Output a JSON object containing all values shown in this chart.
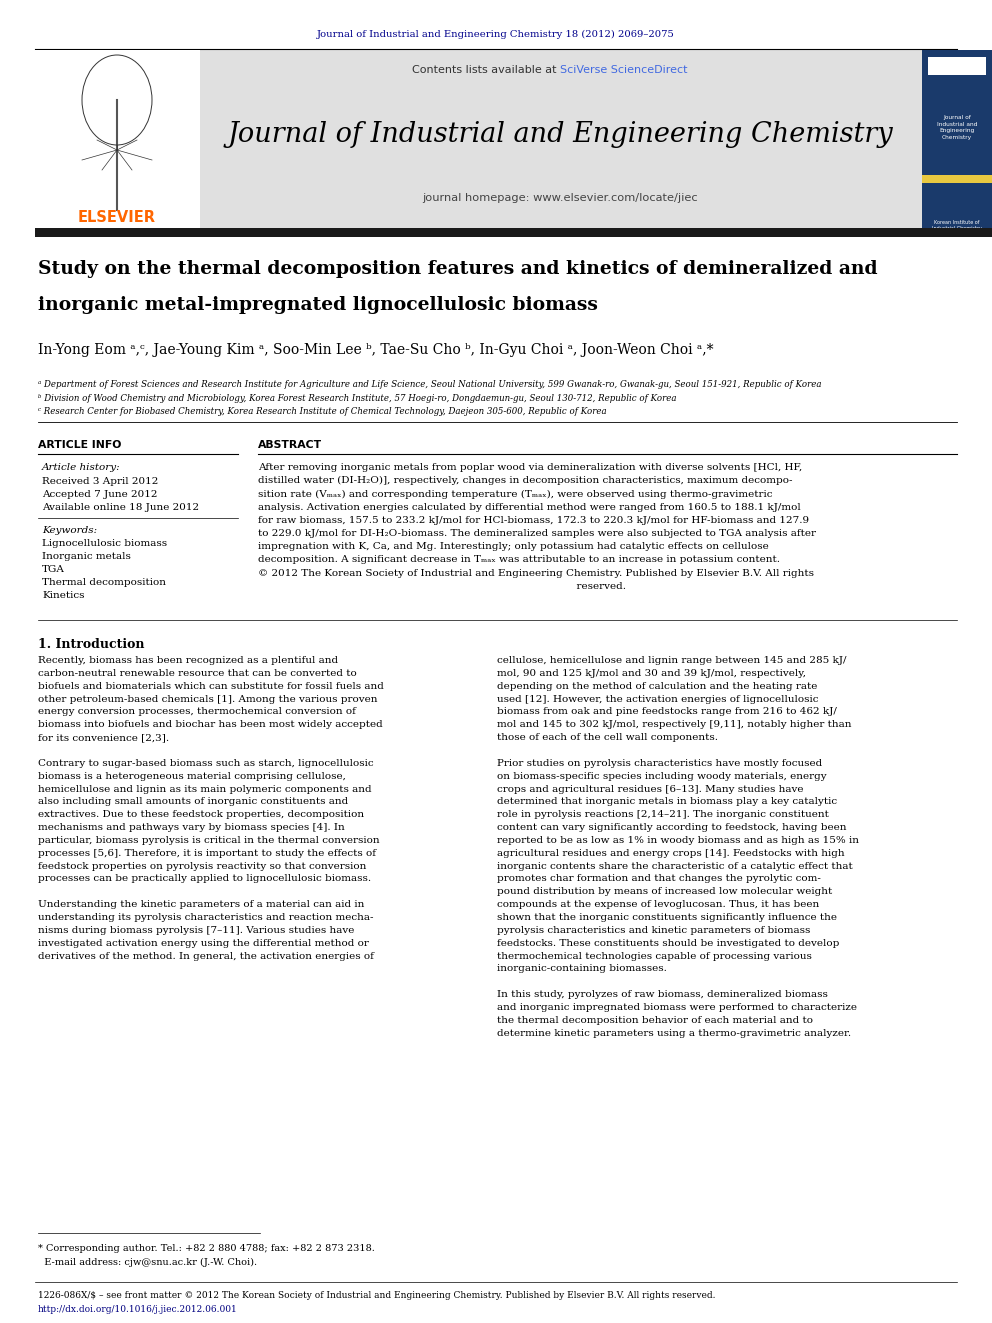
{
  "page_width": 9.92,
  "page_height": 13.23,
  "bg_color": "#ffffff",
  "top_journal_ref": "Journal of Industrial and Engineering Chemistry 18 (2012) 2069–2075",
  "top_journal_ref_color": "#00008B",
  "header_bg": "#e0e0e0",
  "header_sciverse_color": "#4169E1",
  "journal_title": "Journal of Industrial and Engineering Chemistry",
  "journal_homepage": "journal homepage: www.elsevier.com/locate/jiec",
  "elsevier_color": "#FF6600",
  "article_title_line1": "Study on the thermal decomposition features and kinetics of demineralized and",
  "article_title_line2": "inorganic metal-impregnated lignocellulosic biomass",
  "affil_a": "ᵃ Department of Forest Sciences and Research Institute for Agriculture and Life Science, Seoul National University, 599 Gwanak-ro, Gwanak-gu, Seoul 151-921, Republic of Korea",
  "affil_b": "ᵇ Division of Wood Chemistry and Microbiology, Korea Forest Research Institute, 57 Hoegi-ro, Dongdaemun-gu, Seoul 130-712, Republic of Korea",
  "affil_c": "ᶜ Research Center for Biobased Chemistry, Korea Research Institute of Chemical Technology, Daejeon 305-600, Republic of Korea",
  "footer_line1": "1226-086X/$ – see front matter © 2012 The Korean Society of Industrial and Engineering Chemistry. Published by Elsevier B.V. All rights reserved.",
  "footer_line2": "http://dx.doi.org/10.1016/j.jiec.2012.06.001",
  "dark_bar_color": "#1a1a1a",
  "sidebar_color": "#1a3a6b",
  "sidebar_yellow": "#e8c840"
}
